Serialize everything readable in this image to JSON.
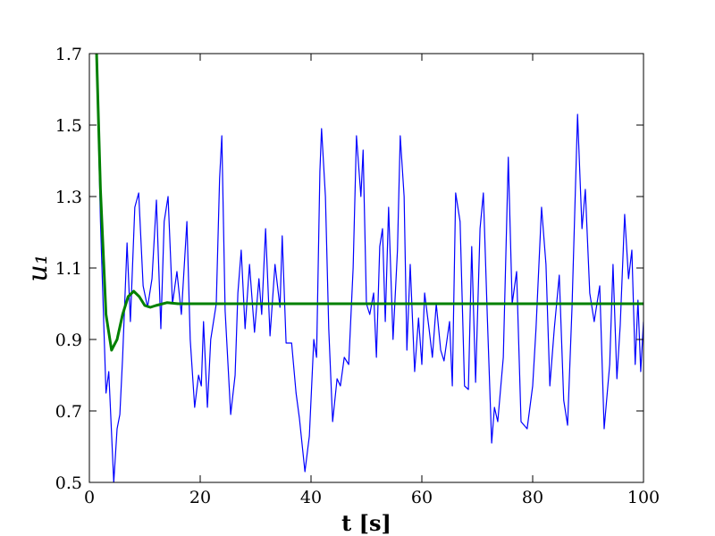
{
  "chart_data": {
    "type": "line",
    "xlabel": "t [s]",
    "ylabel": "u₁",
    "xlim": [
      0,
      100
    ],
    "xticks": [
      0,
      20,
      40,
      60,
      80,
      100
    ],
    "ylim": [
      0.5,
      1.7
    ],
    "yticks": [
      0.5,
      0.7,
      0.9,
      1.1,
      1.3,
      1.5,
      1.7
    ],
    "series": [
      {
        "color": "#0000ff",
        "x": [
          1.3,
          2,
          3,
          3.5,
          4.4,
          5,
          5.5,
          6,
          6.8,
          7.4,
          8.2,
          8.9,
          9.7,
          10.5,
          11.3,
          12.1,
          12.9,
          13.5,
          14.2,
          15,
          15.8,
          16.6,
          17.6,
          18.2,
          19,
          19.7,
          20.2,
          20.6,
          21.3,
          21.9,
          22.9,
          23.5,
          23.9,
          24.5,
          25.5,
          26.3,
          26.8,
          27.4,
          28.1,
          28.9,
          29.8,
          30.6,
          31.1,
          31.8,
          32.6,
          33.5,
          34.4,
          34.8,
          35.5,
          36.5,
          37.3,
          37.9,
          38.9,
          39.7,
          40.5,
          41,
          41.6,
          41.9,
          42.6,
          43.2,
          43.9,
          44.7,
          45.3,
          46,
          46.8,
          47.6,
          48.2,
          49,
          49.4,
          50,
          50.6,
          51.3,
          51.8,
          52.4,
          52.9,
          53.4,
          54,
          54.8,
          55.6,
          56.1,
          56.8,
          57.3,
          57.9,
          58.7,
          59.4,
          60,
          60.5,
          61.3,
          61.9,
          62.6,
          63.4,
          64,
          65,
          65.5,
          66.1,
          66.9,
          67.7,
          68.4,
          69,
          69.7,
          70.5,
          71.1,
          71.8,
          72.6,
          73.1,
          73.7,
          74.7,
          75.6,
          76.3,
          77.1,
          77.9,
          79,
          80,
          80.6,
          81.6,
          82.4,
          83.1,
          83.9,
          84.8,
          85.6,
          86.3,
          87.1,
          88.1,
          88.9,
          89.5,
          90.3,
          91.1,
          92.1,
          92.9,
          93.9,
          94.5,
          95.2,
          95.8,
          96.6,
          97.3,
          97.9,
          98.5,
          99,
          99.5,
          100
        ],
        "values": [
          1.7,
          1.23,
          0.75,
          0.81,
          0.5,
          0.65,
          0.69,
          0.85,
          1.17,
          0.95,
          1.27,
          1.31,
          1.05,
          0.99,
          1.07,
          1.29,
          0.93,
          1.23,
          1.3,
          1.0,
          1.09,
          0.97,
          1.23,
          0.9,
          0.71,
          0.8,
          0.77,
          0.95,
          0.71,
          0.9,
          1.0,
          1.35,
          1.47,
          0.98,
          0.69,
          0.8,
          1.03,
          1.15,
          0.93,
          1.11,
          0.92,
          1.07,
          0.97,
          1.21,
          0.91,
          1.11,
          0.99,
          1.19,
          0.89,
          0.89,
          0.75,
          0.68,
          0.53,
          0.63,
          0.9,
          0.85,
          1.37,
          1.49,
          1.3,
          0.93,
          0.67,
          0.79,
          0.77,
          0.85,
          0.83,
          1.1,
          1.47,
          1.3,
          1.43,
          1.0,
          0.97,
          1.03,
          0.85,
          1.16,
          1.21,
          0.95,
          1.27,
          0.9,
          1.15,
          1.47,
          1.3,
          0.87,
          1.11,
          0.81,
          0.96,
          0.83,
          1.03,
          0.93,
          0.85,
          1.0,
          0.87,
          0.84,
          0.95,
          0.77,
          1.31,
          1.23,
          0.77,
          0.76,
          1.16,
          0.78,
          1.21,
          1.31,
          0.97,
          0.61,
          0.71,
          0.67,
          0.85,
          1.41,
          1.0,
          1.09,
          0.67,
          0.65,
          0.77,
          0.93,
          1.27,
          1.11,
          0.77,
          0.93,
          1.08,
          0.73,
          0.66,
          0.99,
          1.53,
          1.21,
          1.32,
          1.03,
          0.95,
          1.05,
          0.65,
          0.83,
          1.11,
          0.79,
          0.94,
          1.25,
          1.07,
          1.15,
          0.83,
          1.01,
          0.81,
          0.95
        ],
        "width": 1.2
      },
      {
        "color": "#008000",
        "x": [
          1.3,
          2,
          3,
          4,
          5,
          6,
          7,
          8,
          9,
          10,
          11,
          12,
          14,
          16,
          100
        ],
        "values": [
          1.7,
          1.32,
          0.97,
          0.87,
          0.9,
          0.97,
          1.02,
          1.035,
          1.02,
          0.995,
          0.99,
          0.995,
          1.003,
          1.0,
          1.0
        ],
        "width": 3
      }
    ]
  }
}
